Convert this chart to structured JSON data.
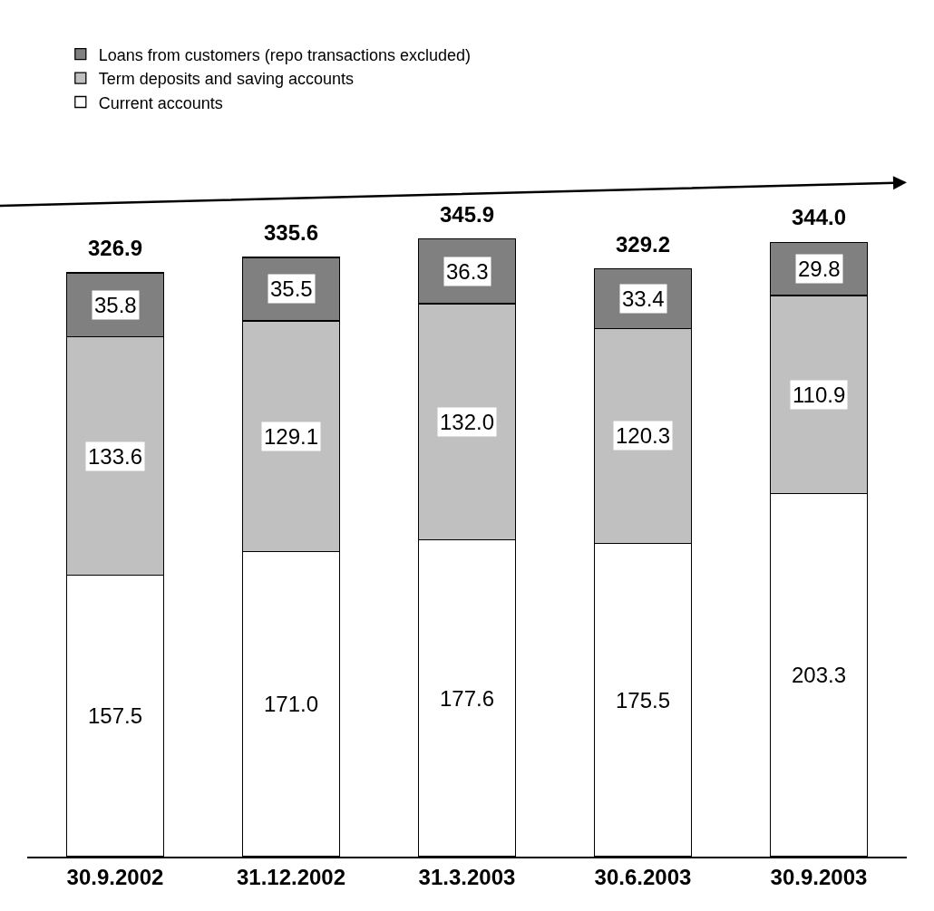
{
  "chart_data": {
    "type": "bar",
    "stacked": true,
    "categories": [
      "30.9.2002",
      "31.12.2002",
      "31.3.2003",
      "30.6.2003",
      "30.9.2003"
    ],
    "series": [
      {
        "name": "Current accounts",
        "color": "#ffffff",
        "values": [
          157.5,
          171.0,
          177.6,
          175.5,
          203.3
        ],
        "value_labels": [
          "157.5",
          "171.0",
          "177.6",
          "175.5",
          "203.3"
        ]
      },
      {
        "name": "Term deposits and saving accounts",
        "color": "#c0c0c0",
        "values": [
          133.6,
          129.1,
          132.0,
          120.3,
          110.9
        ],
        "value_labels": [
          "133.6",
          "129.1",
          "132.0",
          "120.3",
          "110.9"
        ]
      },
      {
        "name": "Loans from customers (repo transactions excluded)",
        "color": "#808080",
        "values": [
          35.8,
          35.5,
          36.3,
          33.4,
          29.8
        ],
        "value_labels": [
          "35.8",
          "35.5",
          "36.3",
          "33.4",
          "29.8"
        ]
      }
    ],
    "totals": [
      "326.9",
      "335.6",
      "345.9",
      "329.2",
      "344.0"
    ],
    "legend": "top left",
    "tick_labels": "x"
  }
}
